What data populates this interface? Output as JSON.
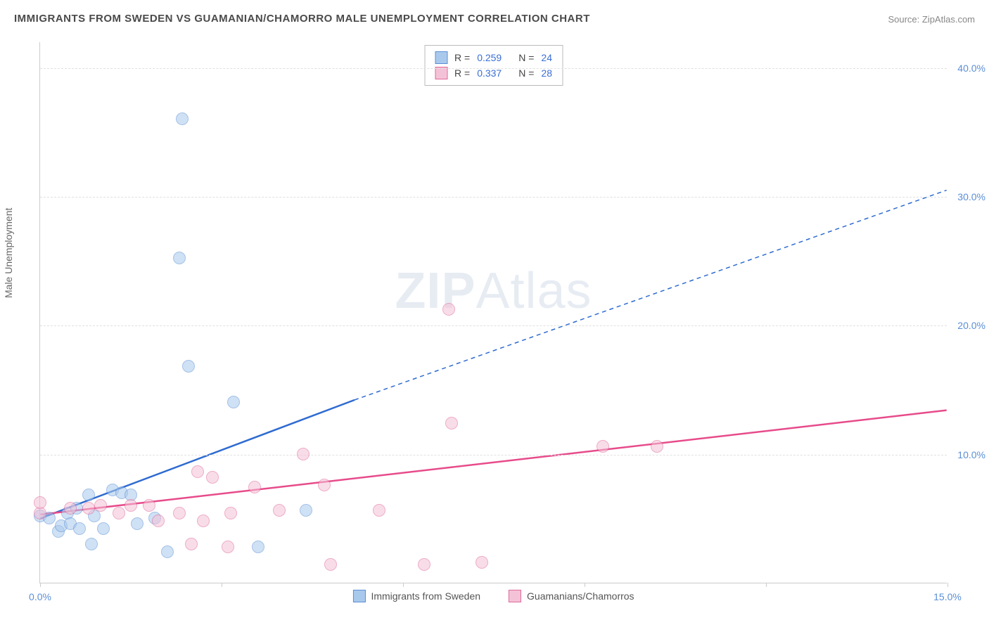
{
  "title": "IMMIGRANTS FROM SWEDEN VS GUAMANIAN/CHAMORRO MALE UNEMPLOYMENT CORRELATION CHART",
  "source": "Source: ZipAtlas.com",
  "y_axis_label": "Male Unemployment",
  "watermark_zip": "ZIP",
  "watermark_atlas": "Atlas",
  "chart": {
    "type": "scatter",
    "background_color": "#ffffff",
    "grid_color": "#e0e0e0",
    "axis_color": "#cccccc",
    "tick_label_color": "#5b8fd6",
    "xlim": [
      0,
      15
    ],
    "ylim": [
      0,
      42
    ],
    "x_ticks": [
      0,
      3,
      6,
      9,
      12,
      15
    ],
    "x_tick_labels": {
      "0": "0.0%",
      "15": "15.0%"
    },
    "y_ticks": [
      10,
      20,
      30,
      40
    ],
    "y_tick_labels": {
      "10": "10.0%",
      "20": "20.0%",
      "30": "30.0%",
      "40": "40.0%"
    },
    "marker_radius": 9,
    "marker_opacity": 0.55,
    "series": [
      {
        "name": "Immigrants from Sweden",
        "fill_color": "#a9c9ec",
        "stroke_color": "#5b8fd6",
        "line_color": "#2e6bd0",
        "r_value": "0.259",
        "n_value": "24",
        "trend_start": [
          0.0,
          5.0
        ],
        "trend_solid_end": [
          5.2,
          14.2
        ],
        "trend_dash_end": [
          15.0,
          30.5
        ],
        "points": [
          [
            0.0,
            5.2
          ],
          [
            0.15,
            5.0
          ],
          [
            0.3,
            4.0
          ],
          [
            0.35,
            4.4
          ],
          [
            0.45,
            5.4
          ],
          [
            0.5,
            4.6
          ],
          [
            0.6,
            5.8
          ],
          [
            0.65,
            4.2
          ],
          [
            0.8,
            6.8
          ],
          [
            0.85,
            3.0
          ],
          [
            0.9,
            5.2
          ],
          [
            1.05,
            4.2
          ],
          [
            1.2,
            7.2
          ],
          [
            1.35,
            7.0
          ],
          [
            1.5,
            6.8
          ],
          [
            1.6,
            4.6
          ],
          [
            1.9,
            5.0
          ],
          [
            2.1,
            2.4
          ],
          [
            2.3,
            25.2
          ],
          [
            2.35,
            36.0
          ],
          [
            2.45,
            16.8
          ],
          [
            3.2,
            14.0
          ],
          [
            3.6,
            2.8
          ],
          [
            4.4,
            5.6
          ]
        ]
      },
      {
        "name": "Guamanians/Chamorros",
        "fill_color": "#f4c2d7",
        "stroke_color": "#e06a9a",
        "line_color": "#e74b8b",
        "r_value": "0.337",
        "n_value": "28",
        "trend_start": [
          0.0,
          5.3
        ],
        "trend_solid_end": [
          15.0,
          13.4
        ],
        "trend_dash_end": null,
        "points": [
          [
            0.0,
            5.4
          ],
          [
            0.0,
            6.2
          ],
          [
            0.5,
            5.8
          ],
          [
            0.8,
            5.8
          ],
          [
            1.0,
            6.0
          ],
          [
            1.3,
            5.4
          ],
          [
            1.5,
            6.0
          ],
          [
            1.8,
            6.0
          ],
          [
            1.95,
            4.8
          ],
          [
            2.3,
            5.4
          ],
          [
            2.5,
            3.0
          ],
          [
            2.6,
            8.6
          ],
          [
            2.7,
            4.8
          ],
          [
            2.85,
            8.2
          ],
          [
            3.1,
            2.8
          ],
          [
            3.15,
            5.4
          ],
          [
            3.55,
            7.4
          ],
          [
            3.95,
            5.6
          ],
          [
            4.35,
            10.0
          ],
          [
            4.7,
            7.6
          ],
          [
            4.8,
            1.4
          ],
          [
            5.6,
            5.6
          ],
          [
            6.35,
            1.4
          ],
          [
            6.75,
            21.2
          ],
          [
            6.8,
            12.4
          ],
          [
            7.3,
            1.6
          ],
          [
            9.3,
            10.6
          ],
          [
            10.2,
            10.6
          ]
        ]
      }
    ]
  },
  "legend_bottom": [
    {
      "label": "Immigrants from Sweden",
      "fill": "#a9c9ec",
      "stroke": "#5b8fd6"
    },
    {
      "label": "Guamanians/Chamorros",
      "fill": "#f4c2d7",
      "stroke": "#e06a9a"
    }
  ]
}
